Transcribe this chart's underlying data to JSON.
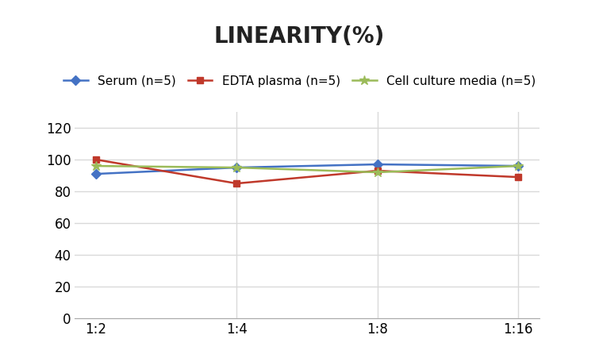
{
  "title": "LINEARITY(%)",
  "title_fontsize": 20,
  "title_fontweight": "bold",
  "x_labels": [
    "1:2",
    "1:4",
    "1:8",
    "1:16"
  ],
  "x_values": [
    0,
    1,
    2,
    3
  ],
  "series": [
    {
      "label": "Serum (n=5)",
      "values": [
        91,
        95,
        97,
        96
      ],
      "color": "#4472C4",
      "marker": "D",
      "markersize": 6,
      "linewidth": 1.8
    },
    {
      "label": "EDTA plasma (n=5)",
      "values": [
        100,
        85,
        93,
        89
      ],
      "color": "#C0392B",
      "marker": "s",
      "markersize": 6,
      "linewidth": 1.8
    },
    {
      "label": "Cell culture media (n=5)",
      "values": [
        96,
        95,
        92,
        96
      ],
      "color": "#9BBB59",
      "marker": "*",
      "markersize": 9,
      "linewidth": 1.8
    }
  ],
  "ylim": [
    0,
    130
  ],
  "yticks": [
    0,
    20,
    40,
    60,
    80,
    100,
    120
  ],
  "grid_color": "#D9D9D9",
  "background_color": "#FFFFFF",
  "legend_fontsize": 11,
  "tick_fontsize": 12,
  "figsize": [
    7.55,
    4.51
  ],
  "dpi": 100
}
